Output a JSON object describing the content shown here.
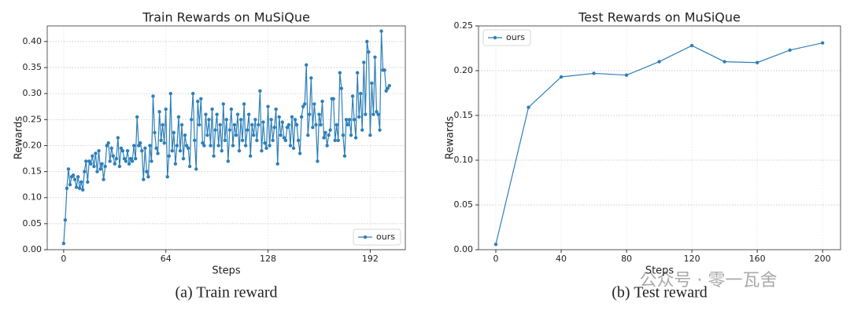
{
  "chart_data": [
    {
      "type": "line",
      "title": "Train Rewards on MuSiQue",
      "xlabel": "Steps",
      "ylabel": "Rewards",
      "caption": "(a) Train reward",
      "x": [
        0,
        1,
        2,
        3,
        4,
        5,
        6,
        7,
        8,
        9,
        10,
        11,
        12,
        13,
        14,
        15,
        16,
        17,
        18,
        19,
        20,
        21,
        22,
        23,
        24,
        25,
        26,
        27,
        28,
        29,
        30,
        31,
        32,
        33,
        34,
        35,
        36,
        37,
        38,
        39,
        40,
        41,
        42,
        43,
        44,
        45,
        46,
        47,
        48,
        49,
        50,
        51,
        52,
        53,
        54,
        55,
        56,
        57,
        58,
        59,
        60,
        61,
        62,
        63,
        64,
        65,
        66,
        67,
        68,
        69,
        70,
        71,
        72,
        73,
        74,
        75,
        76,
        77,
        78,
        79,
        80,
        81,
        82,
        83,
        84,
        85,
        86,
        87,
        88,
        89,
        90,
        91,
        92,
        93,
        94,
        95,
        96,
        97,
        98,
        99,
        100,
        101,
        102,
        103,
        104,
        105,
        106,
        107,
        108,
        109,
        110,
        111,
        112,
        113,
        114,
        115,
        116,
        117,
        118,
        119,
        120,
        121,
        122,
        123,
        124,
        125,
        126,
        127,
        128,
        129,
        130,
        131,
        132,
        133,
        134,
        135,
        136,
        137,
        138,
        139,
        140,
        141,
        142,
        143,
        144,
        145,
        146,
        147,
        148,
        149,
        150,
        151,
        152,
        153,
        154,
        155,
        156,
        157,
        158,
        159,
        160,
        161,
        162,
        163,
        164,
        165,
        166,
        167,
        168,
        169,
        170,
        171,
        172,
        173,
        174,
        175,
        176,
        177,
        178,
        179,
        180,
        181,
        182,
        183,
        184,
        185,
        186,
        187,
        188,
        189,
        190,
        191,
        192,
        193,
        194,
        195,
        196,
        197,
        198,
        199,
        200,
        201,
        202,
        203,
        204
      ],
      "series": [
        {
          "name": "ours",
          "color": "#2e7fb8",
          "values": [
            0.012,
            0.057,
            0.118,
            0.155,
            0.125,
            0.14,
            0.143,
            0.135,
            0.12,
            0.14,
            0.118,
            0.13,
            0.115,
            0.15,
            0.17,
            0.13,
            0.17,
            0.165,
            0.18,
            0.16,
            0.185,
            0.15,
            0.19,
            0.155,
            0.165,
            0.135,
            0.16,
            0.2,
            0.205,
            0.17,
            0.195,
            0.18,
            0.165,
            0.175,
            0.215,
            0.16,
            0.195,
            0.19,
            0.175,
            0.17,
            0.19,
            0.165,
            0.175,
            0.17,
            0.2,
            0.175,
            0.255,
            0.2,
            0.205,
            0.19,
            0.135,
            0.195,
            0.15,
            0.14,
            0.2,
            0.17,
            0.295,
            0.225,
            0.195,
            0.185,
            0.265,
            0.21,
            0.24,
            0.205,
            0.27,
            0.14,
            0.18,
            0.3,
            0.19,
            0.225,
            0.165,
            0.2,
            0.255,
            0.19,
            0.24,
            0.175,
            0.22,
            0.2,
            0.195,
            0.16,
            0.25,
            0.3,
            0.21,
            0.155,
            0.285,
            0.24,
            0.29,
            0.205,
            0.2,
            0.26,
            0.22,
            0.25,
            0.2,
            0.27,
            0.18,
            0.23,
            0.26,
            0.2,
            0.24,
            0.19,
            0.28,
            0.21,
            0.25,
            0.17,
            0.23,
            0.27,
            0.2,
            0.24,
            0.22,
            0.26,
            0.19,
            0.25,
            0.21,
            0.28,
            0.2,
            0.23,
            0.26,
            0.18,
            0.24,
            0.22,
            0.25,
            0.21,
            0.24,
            0.305,
            0.19,
            0.245,
            0.205,
            0.195,
            0.275,
            0.2,
            0.25,
            0.21,
            0.235,
            0.27,
            0.165,
            0.255,
            0.22,
            0.245,
            0.215,
            0.21,
            0.235,
            0.24,
            0.2,
            0.255,
            0.195,
            0.25,
            0.24,
            0.21,
            0.185,
            0.255,
            0.275,
            0.28,
            0.355,
            0.22,
            0.26,
            0.33,
            0.235,
            0.28,
            0.24,
            0.17,
            0.26,
            0.24,
            0.285,
            0.215,
            0.225,
            0.2,
            0.22,
            0.23,
            0.29,
            0.29,
            0.21,
            0.24,
            0.21,
            0.34,
            0.31,
            0.22,
            0.18,
            0.25,
            0.24,
            0.25,
            0.22,
            0.295,
            0.25,
            0.215,
            0.34,
            0.255,
            0.3,
            0.23,
            0.36,
            0.26,
            0.4,
            0.38,
            0.22,
            0.32,
            0.26,
            0.37,
            0.265,
            0.26,
            0.23,
            0.42,
            0.345,
            0.345,
            0.305,
            0.31,
            0.315
          ]
        }
      ],
      "xlim": [
        -10.3,
        214
      ],
      "xticks": [
        0,
        64,
        128,
        192
      ],
      "ylim": [
        0,
        0.43
      ],
      "yticks": [
        {
          "value": 0,
          "label": "0.00"
        },
        {
          "value": 0.05,
          "label": "0.05"
        },
        {
          "value": 0.1,
          "label": "0.10"
        },
        {
          "value": 0.15,
          "label": "0.15"
        },
        {
          "value": 0.2,
          "label": "0.20"
        },
        {
          "value": 0.25,
          "label": "0.25"
        },
        {
          "value": 0.3,
          "label": "0.30"
        },
        {
          "value": 0.35,
          "label": "0.35"
        },
        {
          "value": 0.4,
          "label": "0.40"
        }
      ],
      "grid": true,
      "legend": "lower-right"
    },
    {
      "type": "line",
      "title": "Test Rewards on MuSiQue",
      "xlabel": "Steps",
      "ylabel": "Rewards",
      "caption": "(b) Test reward",
      "x": [
        0,
        20,
        40,
        60,
        80,
        100,
        120,
        140,
        160,
        180,
        200
      ],
      "series": [
        {
          "name": "ours",
          "color": "#2e7fb8",
          "values": [
            0.006,
            0.159,
            0.193,
            0.197,
            0.195,
            0.21,
            0.228,
            0.21,
            0.209,
            0.223,
            0.231
          ]
        }
      ],
      "xlim": [
        -10.6,
        211
      ],
      "xticks": [
        0,
        40,
        80,
        120,
        160,
        200
      ],
      "ylim": [
        0,
        0.25
      ],
      "yticks": [
        {
          "value": 0,
          "label": "0.00"
        },
        {
          "value": 0.05,
          "label": "0.05"
        },
        {
          "value": 0.1,
          "label": "0.10"
        },
        {
          "value": 0.15,
          "label": "0.15"
        },
        {
          "value": 0.2,
          "label": "0.20"
        },
        {
          "value": 0.25,
          "label": "0.25"
        }
      ],
      "grid": true,
      "legend": "upper-left"
    }
  ],
  "watermark": "公众号 · 零一瓦舍"
}
